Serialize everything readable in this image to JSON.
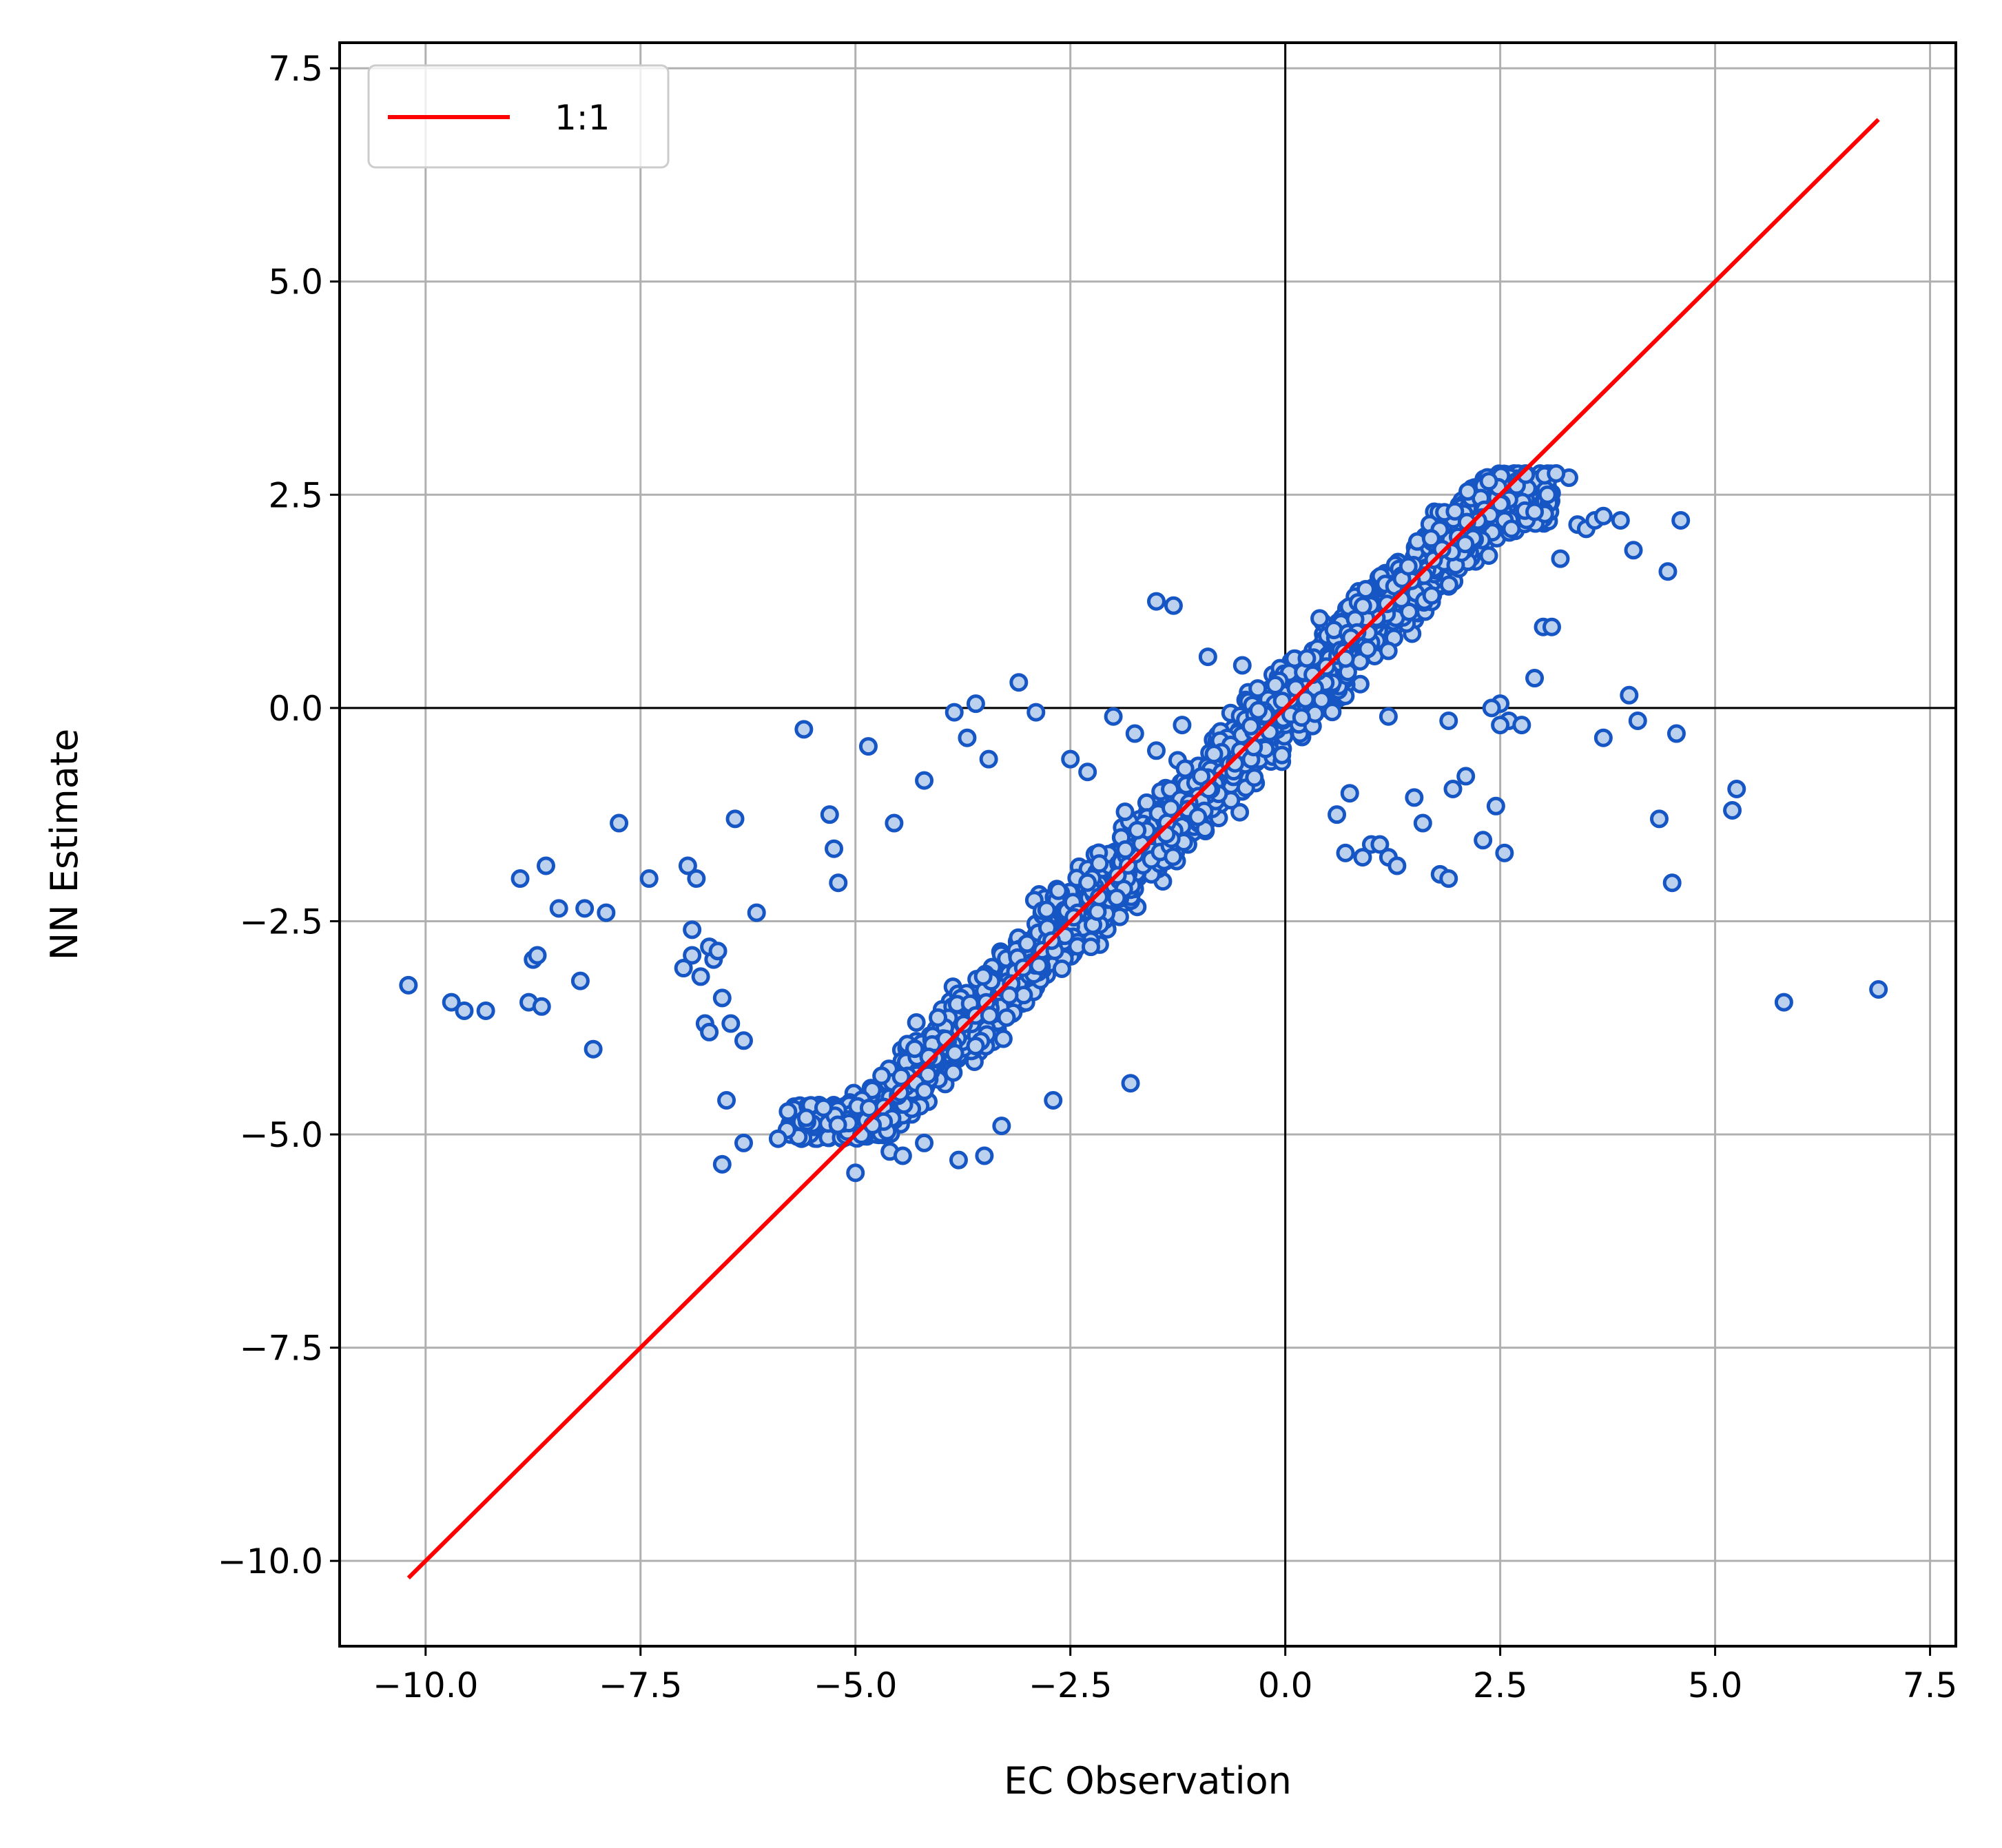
{
  "chart_data": {
    "type": "scatter",
    "title": "",
    "xlabel": "EC Observation",
    "ylabel": "NN Estimate",
    "xlim": [
      -11.0,
      7.8
    ],
    "ylim": [
      -11.0,
      7.8
    ],
    "xticks": [
      -10.0,
      -7.5,
      -5.0,
      -2.5,
      0.0,
      2.5,
      5.0,
      7.5
    ],
    "yticks": [
      -10.0,
      -7.5,
      -5.0,
      -2.5,
      0.0,
      2.5,
      5.0,
      7.5
    ],
    "xtick_labels": [
      "−10.0",
      "−7.5",
      "−5.0",
      "−2.5",
      "0.0",
      "2.5",
      "5.0",
      "7.5"
    ],
    "ytick_labels": [
      "−10.0",
      "−7.5",
      "−5.0",
      "−2.5",
      "0.0",
      "2.5",
      "5.0",
      "7.5"
    ],
    "grid": true,
    "zero_lines": true,
    "legend": {
      "position": "top-left",
      "entries": [
        {
          "label": "1:1",
          "color": "#ff0000"
        }
      ]
    },
    "reference_line": {
      "name": "1:1",
      "color": "#ff0000",
      "x": [
        -10.2,
        6.9
      ],
      "y": [
        -10.2,
        6.9
      ]
    },
    "colors": {
      "points": "#1656c4",
      "point_face": "#bcd1ee",
      "grid": "#b0b0b0",
      "axes": "#000000"
    },
    "cluster_main": {
      "approx_point_count": 2600,
      "x_range": [
        -5.8,
        3.1
      ],
      "relation": "y approximately equals x, spread about 0.5"
    },
    "series": [
      {
        "marker": "hollow-circle",
        "x": [
          -10.2,
          -9.7,
          -9.55,
          -9.3,
          -8.8,
          -8.75,
          -8.7,
          -8.65,
          -8.6,
          -8.2,
          -8.15,
          -8.05,
          -7.9,
          -7.75,
          -7.4,
          -8.9,
          -8.45,
          -7.0,
          -6.8,
          -6.95,
          -6.9,
          -6.75,
          -6.7,
          -6.65,
          -6.55,
          -6.45,
          -6.3,
          -6.15,
          -6.9,
          -6.85,
          -6.7,
          -6.6,
          -6.55,
          -6.5,
          -6.4,
          -6.3,
          -5.9,
          -5.6,
          -5.3,
          -5.25,
          -5.2,
          -4.85,
          -4.55,
          -4.2,
          -3.85,
          -3.7,
          -3.6,
          -3.45,
          -3.1,
          -2.9,
          -2.5,
          -2.3,
          -2.0,
          -1.75,
          -1.5,
          -1.2,
          -0.9,
          -0.5,
          -5.0,
          -4.6,
          -4.45,
          -4.2,
          -3.8,
          -3.5,
          -3.3,
          -2.7,
          -1.8,
          -1.5,
          -1.3,
          0.4,
          0.6,
          0.7,
          0.75,
          0.9,
          1.0,
          1.1,
          1.2,
          1.3,
          1.5,
          1.6,
          1.8,
          1.9,
          2.3,
          2.45,
          2.55,
          1.95,
          2.1,
          2.5,
          2.6,
          2.9,
          3.0,
          3.1,
          3.3,
          3.4,
          3.5,
          3.6,
          3.7,
          3.9,
          4.0,
          4.05,
          4.1,
          4.35,
          4.45,
          4.5,
          4.55,
          4.6,
          5.25,
          5.2,
          5.8,
          6.9,
          3.7,
          1.2,
          1.9,
          2.4,
          2.5,
          2.75,
          3.2,
          2.9,
          3.05,
          3.15
        ],
        "y": [
          -3.25,
          -3.45,
          -3.55,
          -3.55,
          -3.45,
          -2.95,
          -2.9,
          -3.5,
          -1.85,
          -3.2,
          -2.35,
          -4.0,
          -2.4,
          -1.35,
          -2.0,
          -2.0,
          -2.35,
          -3.05,
          -3.15,
          -1.85,
          -2.6,
          -3.7,
          -3.8,
          -2.95,
          -3.4,
          -3.7,
          -3.9,
          -2.4,
          -2.9,
          -2.0,
          -2.8,
          -2.85,
          -5.35,
          -4.6,
          -1.3,
          -5.1,
          -5.05,
          -0.25,
          -1.25,
          -1.65,
          -2.05,
          -0.45,
          -1.35,
          -0.85,
          -0.05,
          -0.35,
          0.05,
          -0.6,
          0.3,
          -0.05,
          -0.6,
          -0.75,
          -0.1,
          -0.3,
          -0.5,
          -0.2,
          0.6,
          0.5,
          -5.45,
          -5.2,
          -5.25,
          -5.1,
          -5.3,
          -5.25,
          -4.9,
          -4.6,
          -4.4,
          1.25,
          1.2,
          1.05,
          -1.25,
          -1.7,
          -1.0,
          -1.75,
          -1.6,
          -1.6,
          -1.75,
          -1.85,
          -1.05,
          -1.35,
          -1.95,
          -2.0,
          -1.55,
          -1.15,
          -1.7,
          -0.95,
          -0.8,
          0.05,
          -0.15,
          0.35,
          0.95,
          0.95,
          2.7,
          2.15,
          2.1,
          2.2,
          2.25,
          2.2,
          0.15,
          1.85,
          -0.15,
          -1.3,
          1.6,
          -2.05,
          -0.3,
          2.2,
          -0.95,
          -1.2,
          -3.45,
          -3.3,
          -0.35,
          -0.1,
          -0.15,
          0.0,
          -0.2,
          -0.2,
          1.75,
          2.3,
          2.5,
          2.75
        ]
      }
    ]
  }
}
